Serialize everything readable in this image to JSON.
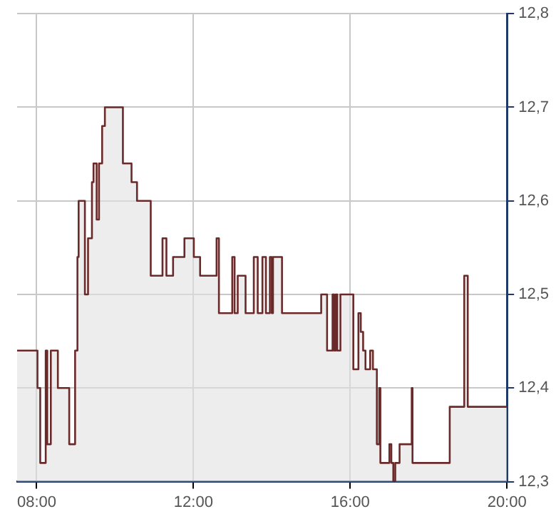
{
  "chart_data": {
    "type": "step",
    "x": [
      7.5,
      8.02,
      8.09,
      8.23,
      8.27,
      8.36,
      8.54,
      8.83,
      8.98,
      9.04,
      9.07,
      9.23,
      9.31,
      9.41,
      9.45,
      9.53,
      9.59,
      9.67,
      9.74,
      10.2,
      10.42,
      10.56,
      10.91,
      11.21,
      11.31,
      11.48,
      11.77,
      12.01,
      12.17,
      12.59,
      12.65,
      12.99,
      13.05,
      13.13,
      13.33,
      13.54,
      13.64,
      13.76,
      13.85,
      13.95,
      14.0,
      14.03,
      14.26,
      15.26,
      15.41,
      15.55,
      15.59,
      15.63,
      15.67,
      15.75,
      16.08,
      16.21,
      16.27,
      16.33,
      16.39,
      16.51,
      16.58,
      16.68,
      16.74,
      16.77,
      16.89,
      17.0,
      17.05,
      17.1,
      17.15,
      17.26,
      17.57,
      17.59,
      18.54,
      18.91,
      19.0,
      20.0
    ],
    "series": [
      {
        "color": "#6b2a2a",
        "values": [
          12.44,
          12.4,
          12.32,
          12.44,
          12.34,
          12.44,
          12.4,
          12.34,
          12.44,
          12.54,
          12.6,
          12.5,
          12.56,
          12.62,
          12.64,
          12.58,
          12.64,
          12.68,
          12.7,
          12.64,
          12.62,
          12.6,
          12.52,
          12.56,
          12.52,
          12.54,
          12.56,
          12.54,
          12.52,
          12.56,
          12.48,
          12.54,
          12.48,
          12.52,
          12.48,
          12.54,
          12.48,
          12.54,
          12.48,
          12.54,
          12.48,
          12.54,
          12.48,
          12.5,
          12.44,
          12.5,
          12.44,
          12.5,
          12.44,
          12.5,
          12.42,
          12.48,
          12.46,
          12.44,
          12.42,
          12.44,
          12.42,
          12.34,
          12.4,
          12.32,
          12.32,
          12.34,
          12.32,
          12.3,
          12.32,
          12.34,
          12.4,
          12.32,
          12.38,
          12.52,
          12.38,
          12.38
        ]
      }
    ],
    "xlim": [
      7.5,
      20
    ],
    "xticks": [
      {
        "value": 8,
        "label": "08:00"
      },
      {
        "value": 12,
        "label": "12:00"
      },
      {
        "value": 16,
        "label": "16:00"
      },
      {
        "value": 20,
        "label": "20:00"
      }
    ],
    "ylim": [
      12.3,
      12.8
    ],
    "yticks": [
      {
        "value": 12.3,
        "label": "12,3"
      },
      {
        "value": 12.4,
        "label": "12,4"
      },
      {
        "value": 12.5,
        "label": "12,5"
      },
      {
        "value": 12.6,
        "label": "12,6"
      },
      {
        "value": 12.7,
        "label": "12,7"
      },
      {
        "value": 12.8,
        "label": "12,8"
      }
    ],
    "grid": true,
    "legend": false,
    "marker": "none",
    "line_style": "solid"
  }
}
